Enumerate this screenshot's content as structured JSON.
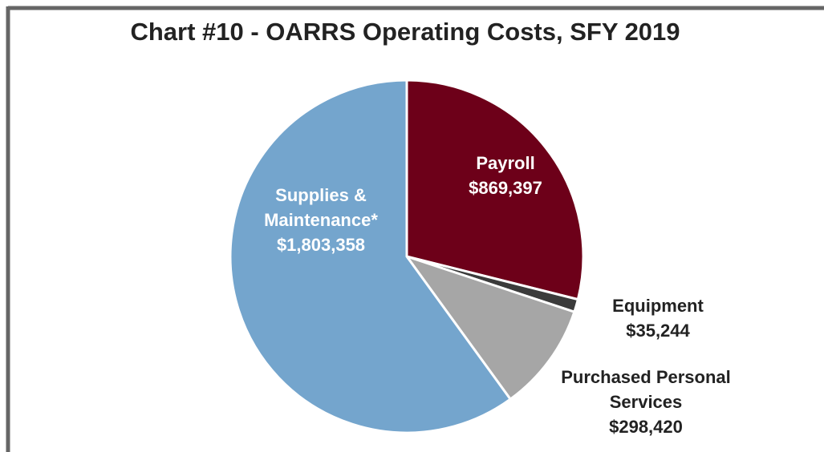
{
  "chart_data": {
    "type": "pie",
    "title": "Chart #10 - OARRS Operating Costs, SFY 2019",
    "categories": [
      "Payroll",
      "Equipment",
      "Purchased Personal Services",
      "Supplies & Maintenance*"
    ],
    "values": [
      869397,
      35244,
      298420,
      1803358
    ],
    "value_labels": [
      "$869,397",
      "$35,244",
      "$298,420",
      "$1,803,358"
    ],
    "colors": [
      "#6d0019",
      "#3b3b3b",
      "#a6a6a6",
      "#74a5cd"
    ]
  }
}
